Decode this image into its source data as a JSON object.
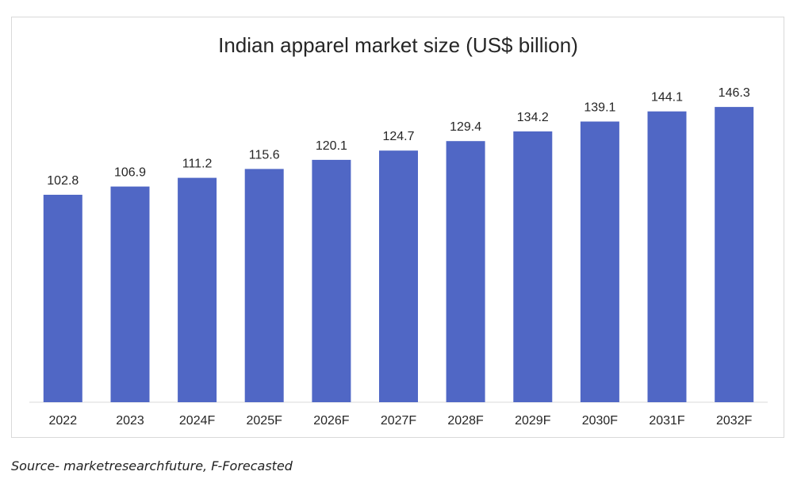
{
  "chart_data": {
    "type": "bar",
    "title": "Indian apparel market size (US$ billion)",
    "categories": [
      "2022",
      "2023",
      "2024F",
      "2025F",
      "2026F",
      "2027F",
      "2028F",
      "2029F",
      "2030F",
      "2031F",
      "2032F"
    ],
    "values": [
      102.8,
      106.9,
      111.2,
      115.6,
      120.1,
      124.7,
      129.4,
      134.2,
      139.1,
      144.1,
      146.3
    ],
    "data_labels": [
      "102.8",
      "106.9",
      "111.2",
      "115.6",
      "120.1",
      "124.7",
      "129.4",
      "134.2",
      "139.1",
      "144.1",
      "146.3"
    ],
    "xlabel": "",
    "ylabel": "",
    "ylim": [
      0,
      160
    ],
    "grid": false,
    "legend": "none",
    "bar_color": "#5067c5",
    "axis_color": "#d9d9d9"
  },
  "source_note": "Source- marketresearchfuture, F-Forecasted"
}
